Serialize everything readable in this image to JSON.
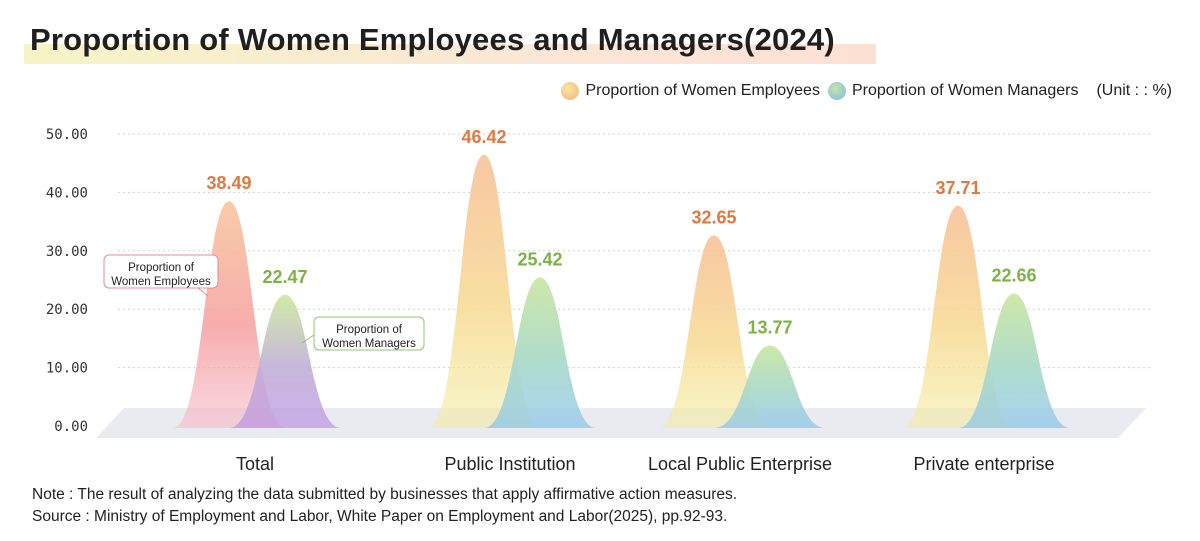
{
  "title": "Proportion of Women Employees and Managers(2024)",
  "legend": {
    "employees_label": "Proportion of Women Employees",
    "managers_label": "Proportion of Women Managers",
    "unit": "(Unit : : %)"
  },
  "callouts": {
    "employees": [
      "Proportion of",
      "Women Employees"
    ],
    "managers": [
      "Proportion of",
      "Women Managers"
    ]
  },
  "notes": {
    "note": "Note : The result of analyzing the data submitted by businesses that apply affirmative action measures.",
    "source": "Source : Ministry of Employment and Labor, White Paper on Employment and Labor(2025), pp.92-93."
  },
  "colors": {
    "employees_value": "#e3783e",
    "managers_value": "#7cb342",
    "grid": "#d2d2d2",
    "floor": "#eaeaf1"
  },
  "chart_data": {
    "type": "area",
    "categories": [
      "Total",
      "Public Institution",
      "Local Public Enterprise",
      "Private enterprise"
    ],
    "series": [
      {
        "name": "Proportion of Women Employees",
        "values": [
          38.49,
          46.42,
          32.65,
          37.71
        ]
      },
      {
        "name": "Proportion of Women Managers",
        "values": [
          22.47,
          25.42,
          13.77,
          22.66
        ]
      }
    ],
    "y_ticks": [
      "0.00",
      "10.00",
      "20.00",
      "30.00",
      "40.00",
      "50.00"
    ],
    "ylim": [
      0,
      50
    ],
    "grid": true,
    "legend_position": "top-right"
  }
}
